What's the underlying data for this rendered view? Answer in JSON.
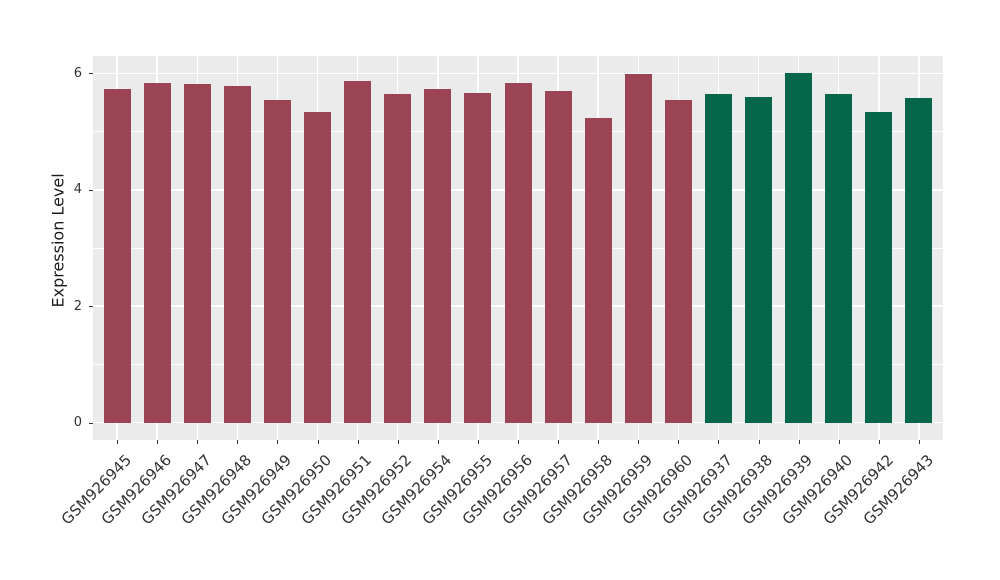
{
  "chart_data": {
    "type": "bar",
    "title": "",
    "xlabel": "",
    "ylabel": "Expression Level",
    "categories": [
      "GSM926945",
      "GSM926946",
      "GSM926947",
      "GSM926948",
      "GSM926949",
      "GSM926950",
      "GSM926951",
      "GSM926952",
      "GSM926954",
      "GSM926955",
      "GSM926956",
      "GSM926957",
      "GSM926958",
      "GSM926959",
      "GSM926960",
      "GSM926937",
      "GSM926938",
      "GSM926939",
      "GSM926940",
      "GSM926942",
      "GSM926943"
    ],
    "values": [
      5.74,
      5.84,
      5.82,
      5.79,
      5.55,
      5.33,
      5.87,
      5.64,
      5.73,
      5.66,
      5.83,
      5.7,
      5.23,
      5.99,
      5.55,
      5.64,
      5.6,
      6.0,
      5.64,
      5.34,
      5.57
    ],
    "bar_colors": [
      "#9B4453",
      "#9B4453",
      "#9B4453",
      "#9B4453",
      "#9B4453",
      "#9B4453",
      "#9B4453",
      "#9B4453",
      "#9B4453",
      "#9B4453",
      "#9B4453",
      "#9B4453",
      "#9B4453",
      "#9B4453",
      "#9B4453",
      "#066649",
      "#066649",
      "#066649",
      "#066649",
      "#066649",
      "#066649"
    ],
    "group_colors": {
      "left_group": "#9B4453",
      "right_group": "#066649"
    },
    "yticks": [
      0,
      2,
      4,
      6
    ],
    "yticks_minor": [
      1,
      3,
      5
    ],
    "ylim": [
      -0.3,
      6.3
    ],
    "panel_background": "#EBEBEB",
    "grid_color": "#FFFFFF",
    "tick_color": "#333333",
    "legend": "none",
    "grid": "on"
  }
}
